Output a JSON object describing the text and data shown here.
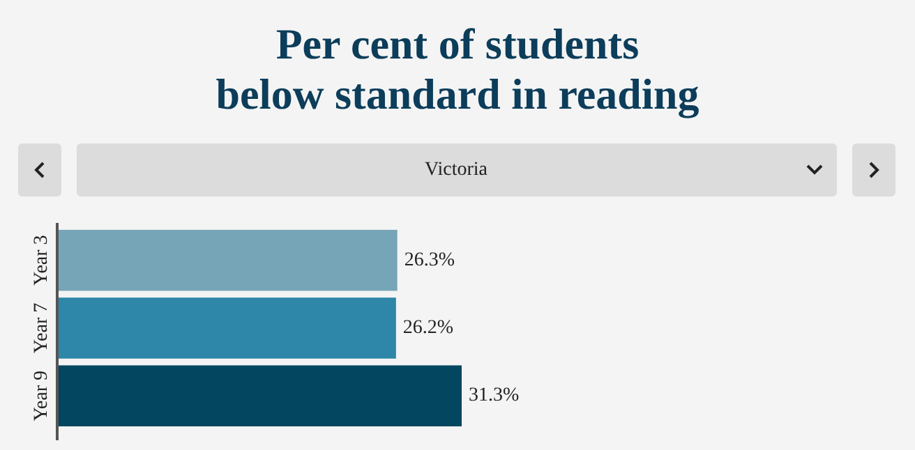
{
  "chart_data": {
    "type": "bar",
    "orientation": "horizontal",
    "title": "Per cent of students below standard in reading",
    "annotations": [
      "Victoria"
    ],
    "categories": [
      "Year 3",
      "Year 7",
      "Year 9"
    ],
    "values": [
      26.3,
      26.2,
      31.3
    ],
    "colors": [
      "#76a5b7",
      "#2e87a8",
      "#03465f"
    ],
    "value_labels": [
      "26.3%",
      "26.2%",
      "31.3%"
    ]
  }
}
